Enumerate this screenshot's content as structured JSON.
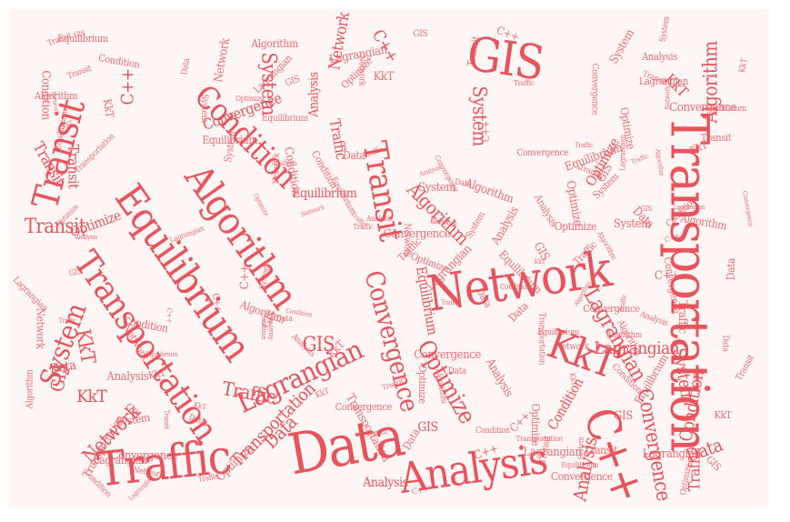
{
  "colors": {
    "word": "#e8545c",
    "word_light": "#ec6e74",
    "background": "#fef5f5",
    "page": "#ffffff"
  },
  "cloud": {
    "large": [
      "Transportation",
      "Network",
      "GIS",
      "Data",
      "Analysis",
      "Traffic",
      "Equilibrium",
      "Transportation",
      "Algorithm",
      "Transit",
      "KkT",
      "C++",
      "Transit",
      "Condition",
      "Lagrangian",
      "Convergence",
      "Optimize",
      "System"
    ],
    "medium": [
      "Transit",
      "Transportation",
      "System",
      "Equilibrium",
      "Analysis",
      "Network",
      "GIS",
      "Condition",
      "KkT",
      "Traffic",
      "Data",
      "Algorithm",
      "Optimize",
      "Convergence",
      "Lagrangian",
      "Transit",
      "KkT",
      "Network",
      "Data",
      "System",
      "C++",
      "Analysis",
      "Algorithm",
      "Traffic",
      "GIS",
      "Optimize",
      "Convergence",
      "Equilibrium",
      "Condition",
      "Lagrangian",
      "KkT",
      "Data",
      "Traffic",
      "System",
      "Transit",
      "Analysis",
      "GIS",
      "C++"
    ],
    "small": [
      "Lagrangian",
      "Network",
      "Equilibrium",
      "Transportation",
      "Transportation",
      "Data",
      "Convergence",
      "Analysis",
      "Transit",
      "Lagrangian",
      "Optimize",
      "System",
      "Traffic",
      "Condition",
      "Algorithm",
      "Convergence",
      "Network",
      "KkT",
      "GIS",
      "C++",
      "Data",
      "Optimize",
      "Equilibrium",
      "Analysis",
      "System",
      "Traffic",
      "Transit",
      "Algorithm",
      "Condition",
      "Lagrangian",
      "KkT",
      "Convergence",
      "GIS",
      "Network",
      "Data",
      "C++",
      "Transportation",
      "Optimize",
      "Equilibrium",
      "System",
      "Traffic",
      "Algorithm",
      "Analysis",
      "Transit",
      "KkT",
      "Condition",
      "Lagrangian",
      "Convergence",
      "GIS",
      "Network",
      "Data",
      "C++",
      "Optimize",
      "Equilibrium",
      "Traffic",
      "System",
      "Analysis",
      "Algorithm",
      "Transit",
      "KkT",
      "Transportation",
      "Condition",
      "Lagrangian",
      "Data",
      "Convergence",
      "GIS",
      "C++",
      "Network",
      "Optimize",
      "System",
      "Equilibrium",
      "Traffic",
      "Analysis",
      "Transit",
      "Algorithm",
      "KkT",
      "Condition",
      "Data",
      "Lagrangian",
      "Convergence",
      "GIS",
      "C++",
      "Network",
      "Optimize",
      "System",
      "Equilibrium",
      "Traffic",
      "Analysis",
      "Transit",
      "Algorithm",
      "KkT",
      "Condition",
      "Data",
      "Lagrangian",
      "Convergence",
      "GIS",
      "C++",
      "Network",
      "Optimize",
      "Transportation",
      "System",
      "Equilibrium",
      "Traffic",
      "Analysis",
      "Transit",
      "Algorithm",
      "KkT",
      "Condition",
      "Data",
      "Lagrangian",
      "Convergence",
      "GIS",
      "C++",
      "Network",
      "Optimize",
      "System",
      "Equilibrium",
      "Traffic",
      "Analysis",
      "Transit",
      "Algorithm",
      "KkT",
      "Condition",
      "Data",
      "Lagrangian",
      "Convergence",
      "GIS",
      "C++",
      "Network",
      "Optimize",
      "System",
      "Equilibrium",
      "Traffic",
      "Analysis",
      "Transit",
      "Algorithm",
      "KkT",
      "Condition",
      "Data",
      "Lagrangian",
      "Convergence",
      "GIS",
      "C++",
      "Network",
      "Optimize",
      "System",
      "Equilibrium",
      "Traffic",
      "Analysis",
      "Transit",
      "Algorithm",
      "KkT",
      "Condition",
      "Data",
      "Lagrangian",
      "Convergence",
      "GIS",
      "C++",
      "Network",
      "Optimize",
      "System",
      "Equilibrium",
      "Traffic",
      "Analysis",
      "Transit",
      "Algorithm",
      "KkT",
      "Condition",
      "Data",
      "Lagrangian",
      "Convergence",
      "GIS",
      "C++",
      "Network",
      "Optimize",
      "System",
      "Equilibrium",
      "Traffic",
      "Analysis",
      "Transit",
      "Algorithm",
      "KkT",
      "Condition"
    ]
  }
}
